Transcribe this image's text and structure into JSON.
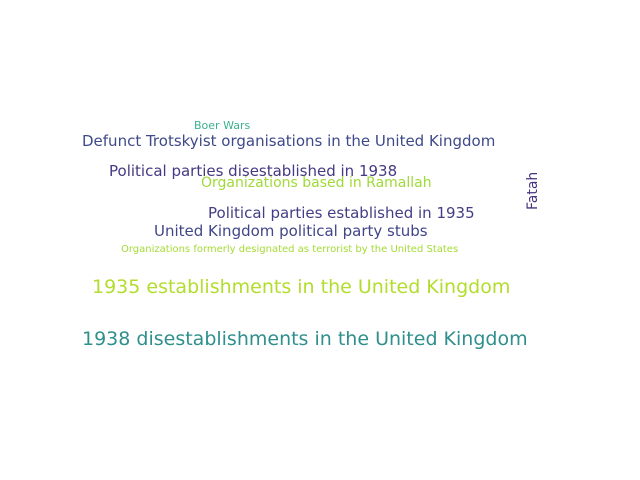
{
  "words": [
    {
      "text": "Boer Wars",
      "color": "#3bb08f"
    },
    {
      "text": "Defunct Trotskyist organisations in the United Kingdom",
      "color": "#3e4a89"
    },
    {
      "text": "Political parties disestablished in 1938",
      "color": "#443983"
    },
    {
      "text": "Organizations based in Ramallah",
      "color": "#a0da39"
    },
    {
      "text": "Fatah",
      "color": "#46327e"
    },
    {
      "text": "Political parties established in 1935",
      "color": "#433e85"
    },
    {
      "text": "United Kingdom political party stubs",
      "color": "#404688"
    },
    {
      "text": "Organizations formerly designated as terrorist by the United States",
      "color": "#a5db36"
    },
    {
      "text": "1935 establishments in the United Kingdom",
      "color": "#b2dd2d"
    },
    {
      "text": "1938 disestablishments in the United Kingdom",
      "color": "#2f8f8c"
    }
  ]
}
